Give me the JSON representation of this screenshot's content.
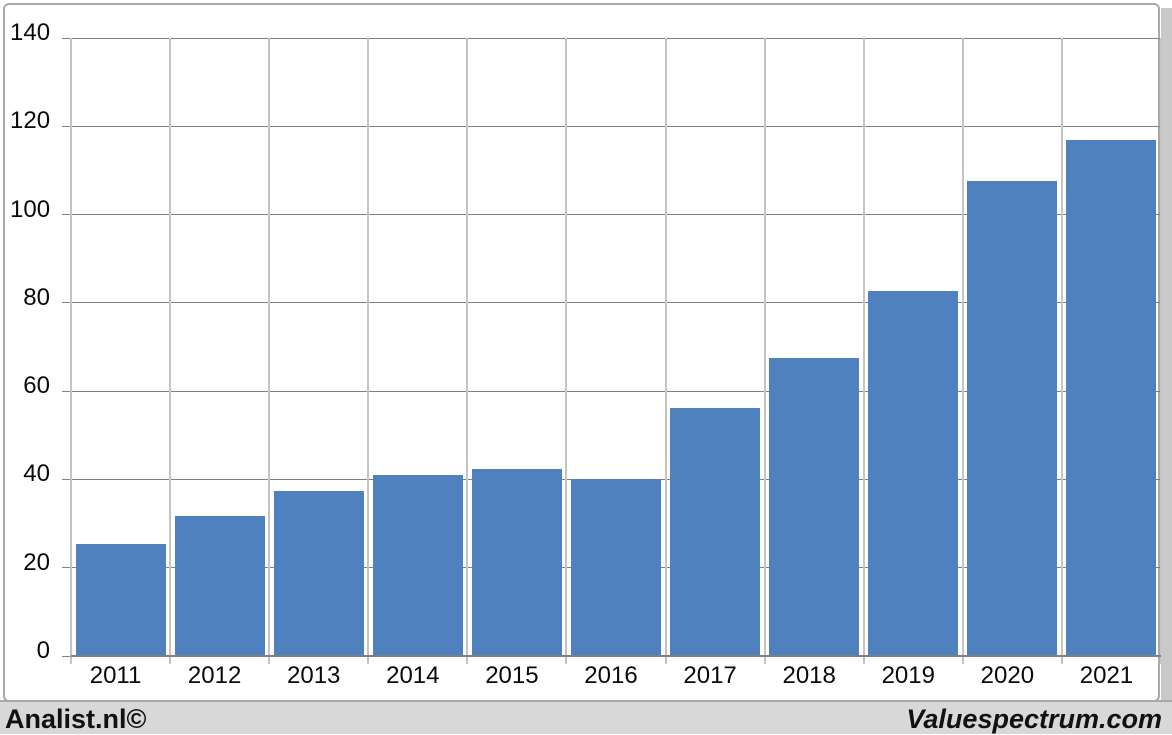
{
  "chart_data": {
    "type": "bar",
    "title": "",
    "xlabel": "",
    "ylabel": "",
    "categories": [
      "2011",
      "2012",
      "2013",
      "2014",
      "2015",
      "2016",
      "2017",
      "2018",
      "2019",
      "2020",
      "2021"
    ],
    "values": [
      25.4,
      31.7,
      37.4,
      41.0,
      42.3,
      40.1,
      56.1,
      67.5,
      82.6,
      107.6,
      116.8
    ],
    "ylim": [
      0,
      140
    ],
    "yticks": [
      0,
      20,
      40,
      60,
      80,
      100,
      120,
      140
    ],
    "grid": true,
    "legend_position": "none",
    "bar_color": "#4e81bd",
    "hgrid_color": "#7f7f7f",
    "vgrid_color": "#c4c4c4",
    "axis_color": "#808080"
  },
  "footer": {
    "left_label": "Analist.nl©",
    "right_label": "Valuespectrum.com"
  }
}
